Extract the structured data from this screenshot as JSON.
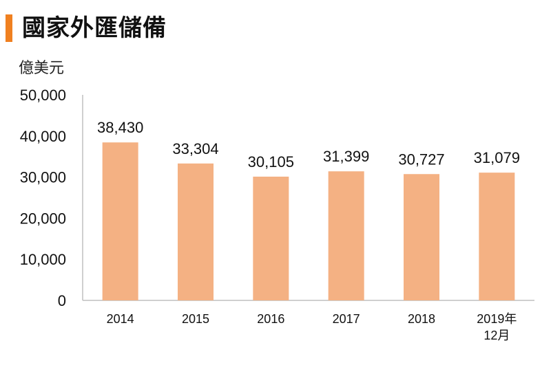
{
  "header": {
    "title": "國家外匯儲備"
  },
  "colors": {
    "accent": "#f08020",
    "bar": "#f4b183",
    "axis": "#bfbfbf"
  },
  "chart_data": {
    "type": "bar",
    "title": "國家外匯儲備",
    "ylabel": "億美元",
    "xlabel": "",
    "categories": [
      "2014",
      "2015",
      "2016",
      "2017",
      "2018",
      "2019年\n12月"
    ],
    "values": [
      38430,
      33304,
      30105,
      31399,
      30727,
      31079
    ],
    "value_labels": [
      "38,430",
      "33,304",
      "30,105",
      "31,399",
      "30,727",
      "31,079"
    ],
    "yticks": [
      "0",
      "10,000",
      "20,000",
      "30,000",
      "40,000",
      "50,000"
    ],
    "ylim": [
      0,
      50000
    ],
    "grid": false,
    "legend": "none"
  }
}
